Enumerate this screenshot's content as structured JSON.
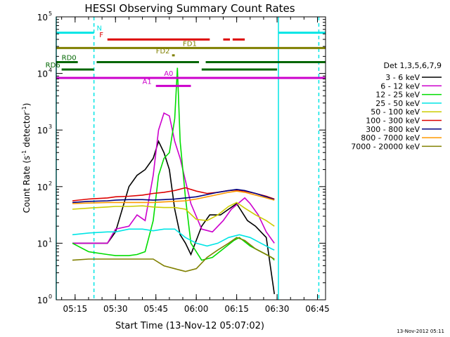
{
  "chart_data": {
    "type": "line",
    "title": "HESSI Observing Summary Count Rates",
    "xlabel": "Start Time (13-Nov-12 05:07:02)",
    "ylabel_main": "Count Rate (s",
    "ylabel_sup1": "-1",
    "ylabel_mid": " detector",
    "ylabel_sup2": "-1",
    "ylabel_end": ")",
    "xlim_min": [
      8,
      108
    ],
    "ylim_log10": [
      0,
      5
    ],
    "x_ticks": [
      {
        "t": 15,
        "label": "05:15"
      },
      {
        "t": 30,
        "label": "05:30"
      },
      {
        "t": 45,
        "label": "05:45"
      },
      {
        "t": 60,
        "label": "06:00"
      },
      {
        "t": 75,
        "label": "06:15"
      },
      {
        "t": 90,
        "label": "06:30"
      },
      {
        "t": 105,
        "label": "06:45"
      }
    ],
    "y_ticks": [
      {
        "e": 0,
        "label": "10",
        "sup": "0"
      },
      {
        "e": 1,
        "label": "10",
        "sup": "1"
      },
      {
        "e": 2,
        "label": "10",
        "sup": "2"
      },
      {
        "e": 3,
        "label": "10",
        "sup": "3"
      },
      {
        "e": 4,
        "label": "10",
        "sup": "4"
      },
      {
        "e": 5,
        "label": "10",
        "sup": "5"
      }
    ],
    "legend_title": "Det 1,3,5,6,7,9",
    "legend_position": "right",
    "series": [
      {
        "name": "3 - 6 keV",
        "color": "#000000",
        "points": [
          [
            14,
            1
          ],
          [
            20,
            1
          ],
          [
            27,
            1
          ],
          [
            30,
            1.2
          ],
          [
            35,
            2
          ],
          [
            38,
            2.2
          ],
          [
            41,
            2.3
          ],
          [
            44,
            2.5
          ],
          [
            46,
            2.8
          ],
          [
            48,
            2.6
          ],
          [
            50,
            2.3
          ],
          [
            52,
            1.6
          ],
          [
            54,
            1.15
          ],
          [
            56,
            1.0
          ],
          [
            58,
            0.8
          ],
          [
            62,
            1.3
          ],
          [
            65,
            1.5
          ],
          [
            69,
            1.5
          ],
          [
            72,
            1.6
          ],
          [
            75,
            1.7
          ],
          [
            79,
            1.4
          ],
          [
            82,
            1.3
          ],
          [
            86,
            1.1
          ],
          [
            89,
            0.1
          ]
        ]
      },
      {
        "name": "6 - 12 keV",
        "color": "#cc00cc",
        "points": [
          [
            14,
            1
          ],
          [
            20,
            1
          ],
          [
            27,
            1
          ],
          [
            30,
            1.25
          ],
          [
            35,
            1.3
          ],
          [
            38,
            1.5
          ],
          [
            41,
            1.4
          ],
          [
            44,
            2.2
          ],
          [
            46,
            3.0
          ],
          [
            48,
            3.3
          ],
          [
            50,
            3.25
          ],
          [
            52,
            2.8
          ],
          [
            54,
            2.5
          ],
          [
            56,
            2.1
          ],
          [
            58,
            1.7
          ],
          [
            62,
            1.25
          ],
          [
            66,
            1.2
          ],
          [
            70,
            1.4
          ],
          [
            73,
            1.6
          ],
          [
            76,
            1.72
          ],
          [
            78,
            1.8
          ],
          [
            80,
            1.7
          ],
          [
            83,
            1.5
          ],
          [
            86,
            1.2
          ],
          [
            89,
            1.0
          ]
        ]
      },
      {
        "name": "12 - 25 keV",
        "color": "#00dd00",
        "points": [
          [
            14,
            1
          ],
          [
            20,
            0.85
          ],
          [
            27,
            0.8
          ],
          [
            30,
            0.78
          ],
          [
            35,
            0.78
          ],
          [
            38,
            0.8
          ],
          [
            41,
            0.85
          ],
          [
            44,
            1.4
          ],
          [
            46,
            2.2
          ],
          [
            48,
            2.5
          ],
          [
            50,
            2.6
          ],
          [
            52,
            3.2
          ],
          [
            53,
            4.1
          ],
          [
            54,
            2.8
          ],
          [
            56,
            1.8
          ],
          [
            58,
            1.0
          ],
          [
            62,
            0.7
          ],
          [
            66,
            0.75
          ],
          [
            70,
            0.9
          ],
          [
            74,
            1.05
          ],
          [
            76,
            1.1
          ],
          [
            80,
            0.95
          ],
          [
            84,
            0.85
          ],
          [
            88,
            0.75
          ],
          [
            89,
            0.7
          ]
        ]
      },
      {
        "name": "25 - 50 keV",
        "color": "#00e5e5",
        "points": [
          [
            14,
            1.15
          ],
          [
            20,
            1.18
          ],
          [
            27,
            1.2
          ],
          [
            30,
            1.2
          ],
          [
            35,
            1.25
          ],
          [
            40,
            1.25
          ],
          [
            44,
            1.22
          ],
          [
            48,
            1.25
          ],
          [
            52,
            1.25
          ],
          [
            56,
            1.1
          ],
          [
            60,
            1.0
          ],
          [
            64,
            0.95
          ],
          [
            68,
            1.0
          ],
          [
            72,
            1.1
          ],
          [
            76,
            1.15
          ],
          [
            80,
            1.1
          ],
          [
            84,
            1.0
          ],
          [
            88,
            0.9
          ],
          [
            89,
            0.88
          ]
        ]
      },
      {
        "name": "50 - 100 keV",
        "color": "#cccc00",
        "points": [
          [
            14,
            1.6
          ],
          [
            20,
            1.62
          ],
          [
            27,
            1.64
          ],
          [
            30,
            1.65
          ],
          [
            35,
            1.65
          ],
          [
            40,
            1.66
          ],
          [
            44,
            1.64
          ],
          [
            48,
            1.63
          ],
          [
            52,
            1.63
          ],
          [
            56,
            1.6
          ],
          [
            60,
            1.42
          ],
          [
            64,
            1.4
          ],
          [
            68,
            1.5
          ],
          [
            72,
            1.65
          ],
          [
            75,
            1.72
          ],
          [
            78,
            1.62
          ],
          [
            82,
            1.5
          ],
          [
            86,
            1.4
          ],
          [
            89,
            1.3
          ]
        ]
      },
      {
        "name": "100 - 300 keV",
        "color": "#dd0000",
        "points": [
          [
            14,
            1.75
          ],
          [
            20,
            1.78
          ],
          [
            27,
            1.8
          ],
          [
            30,
            1.82
          ],
          [
            35,
            1.83
          ],
          [
            40,
            1.85
          ],
          [
            44,
            1.88
          ],
          [
            48,
            1.9
          ],
          [
            52,
            1.93
          ],
          [
            56,
            1.98
          ],
          [
            60,
            1.92
          ],
          [
            64,
            1.88
          ],
          [
            68,
            1.9
          ],
          [
            72,
            1.93
          ],
          [
            75,
            1.94
          ],
          [
            78,
            1.92
          ],
          [
            82,
            1.88
          ],
          [
            86,
            1.83
          ],
          [
            89,
            1.78
          ]
        ]
      },
      {
        "name": "300 - 800 keV",
        "color": "#000080",
        "points": [
          [
            14,
            1.72
          ],
          [
            20,
            1.74
          ],
          [
            27,
            1.75
          ],
          [
            30,
            1.76
          ],
          [
            35,
            1.77
          ],
          [
            40,
            1.77
          ],
          [
            44,
            1.76
          ],
          [
            48,
            1.77
          ],
          [
            52,
            1.78
          ],
          [
            56,
            1.8
          ],
          [
            60,
            1.82
          ],
          [
            64,
            1.86
          ],
          [
            68,
            1.9
          ],
          [
            72,
            1.93
          ],
          [
            75,
            1.95
          ],
          [
            78,
            1.93
          ],
          [
            82,
            1.88
          ],
          [
            86,
            1.82
          ],
          [
            89,
            1.77
          ]
        ]
      },
      {
        "name": "800 - 7000 keV",
        "color": "#ff9900",
        "points": [
          [
            14,
            1.7
          ],
          [
            20,
            1.71
          ],
          [
            27,
            1.72
          ],
          [
            30,
            1.72
          ],
          [
            35,
            1.72
          ],
          [
            40,
            1.72
          ],
          [
            44,
            1.72
          ],
          [
            48,
            1.73
          ],
          [
            52,
            1.74
          ],
          [
            56,
            1.75
          ],
          [
            60,
            1.78
          ],
          [
            64,
            1.82
          ],
          [
            68,
            1.86
          ],
          [
            72,
            1.9
          ],
          [
            75,
            1.92
          ],
          [
            78,
            1.9
          ],
          [
            82,
            1.85
          ],
          [
            86,
            1.8
          ],
          [
            89,
            1.76
          ]
        ]
      },
      {
        "name": "7000 - 20000 keV",
        "color": "#808000",
        "points": [
          [
            14,
            0.7
          ],
          [
            20,
            0.72
          ],
          [
            27,
            0.72
          ],
          [
            30,
            0.72
          ],
          [
            35,
            0.72
          ],
          [
            40,
            0.72
          ],
          [
            44,
            0.72
          ],
          [
            48,
            0.6
          ],
          [
            52,
            0.55
          ],
          [
            56,
            0.5
          ],
          [
            60,
            0.55
          ],
          [
            64,
            0.75
          ],
          [
            68,
            0.88
          ],
          [
            72,
            1.0
          ],
          [
            75,
            1.1
          ],
          [
            78,
            1.05
          ],
          [
            82,
            0.9
          ],
          [
            86,
            0.8
          ],
          [
            89,
            0.72
          ]
        ]
      }
    ],
    "flag_bars": [
      {
        "label": "N",
        "color": "#00e5e5",
        "y": 4.72,
        "segments": [
          [
            8,
            22
          ],
          [
            90.5,
            108
          ]
        ],
        "label_t": 23
      },
      {
        "label": "F",
        "color": "#dd0000",
        "y": 4.6,
        "segments": [
          [
            27,
            65
          ],
          [
            70,
            72.5
          ],
          [
            73.5,
            78
          ]
        ],
        "label_t": 24
      },
      {
        "label": "FD1",
        "color": "#808000",
        "y": 4.45,
        "segments": [
          [
            8,
            108
          ]
        ],
        "label_t": 55
      },
      {
        "label": "FD2",
        "color": "#808000",
        "y": 4.32,
        "segments": [
          [
            51,
            52
          ]
        ],
        "label_t": 45
      },
      {
        "label": "RD0",
        "color": "#006600",
        "y": 4.2,
        "segments": [
          [
            8,
            16
          ],
          [
            23,
            61
          ],
          [
            63.5,
            108
          ]
        ],
        "label_t": 10
      },
      {
        "label": "RD6",
        "color": "#006600",
        "y": 4.07,
        "segments": [
          [
            10,
            22
          ],
          [
            62,
            90
          ]
        ],
        "label_t": 4
      },
      {
        "label": "A0",
        "color": "#cc00cc",
        "y": 3.92,
        "segments": [
          [
            8,
            108
          ]
        ],
        "label_t": 48
      },
      {
        "label": "A1",
        "color": "#cc00cc",
        "y": 3.78,
        "segments": [
          [
            45,
            58
          ]
        ],
        "label_t": 40
      }
    ],
    "vlines": [
      {
        "t": 8,
        "color": "#00e5e5",
        "dashed": false
      },
      {
        "t": 22,
        "color": "#00e5e5",
        "dashed": true
      },
      {
        "t": 90.5,
        "color": "#00e5e5",
        "dashed": false
      },
      {
        "t": 105.5,
        "color": "#00e5e5",
        "dashed": true
      }
    ]
  },
  "footer_date": "13-Nov-2012 05:11"
}
